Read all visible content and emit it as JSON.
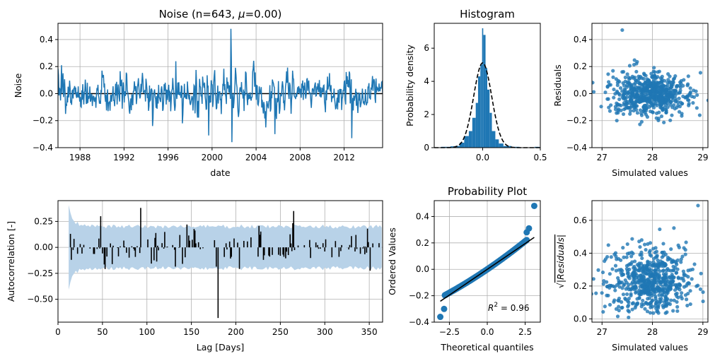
{
  "colors": {
    "primary": "#1f77b4",
    "band": "#b8d2e8",
    "black": "#000000"
  },
  "chart_data": [
    {
      "id": "noise",
      "type": "line",
      "title": "Noise (n=643, $\\mu$=0.00)",
      "title_parts": {
        "prefix": "Noise (n=643, ",
        "symbol": "μ",
        "suffix": "=0.00)"
      },
      "xlabel": "date",
      "ylabel": "Noise",
      "x_range": [
        "1986-01-01",
        "2015-06-30"
      ],
      "ylim": [
        -0.4,
        0.52
      ],
      "xticks": [
        "1988",
        "1992",
        "1996",
        "2000",
        "2004",
        "2008",
        "2012"
      ],
      "yticks": [
        "−0.4",
        "−0.2",
        "0.0",
        "0.2",
        "0.4"
      ],
      "n": 643,
      "mean": 0.0,
      "std": 0.078,
      "spikes": [
        {
          "date": "1986.3",
          "value": 0.21
        },
        {
          "date": "1986.7",
          "value": -0.15
        },
        {
          "date": "1990.0",
          "value": 0.17
        },
        {
          "date": "1994.0",
          "value": 0.11
        },
        {
          "date": "1994.6",
          "value": -0.24
        },
        {
          "date": "1996.7",
          "value": 0.24
        },
        {
          "date": "1997.3",
          "value": -0.22
        },
        {
          "date": "1999.7",
          "value": -0.31
        },
        {
          "date": "2001.7",
          "value": 0.48
        },
        {
          "date": "2001.8",
          "value": -0.36
        },
        {
          "date": "2005.7",
          "value": -0.3
        },
        {
          "date": "2007.3",
          "value": 0.17
        },
        {
          "date": "2012.7",
          "value": -0.33
        },
        {
          "date": "2012.2",
          "value": 0.16
        },
        {
          "date": "2014.6",
          "value": 0.13
        }
      ],
      "grid": true
    },
    {
      "id": "histogram",
      "type": "bar",
      "title": "Histogram",
      "ylabel": "Probability density",
      "xlim": [
        -0.42,
        0.5
      ],
      "ylim": [
        0,
        7.5
      ],
      "xticks": [
        "0.0",
        "0.5"
      ],
      "yticks": [
        "0",
        "2",
        "4",
        "6"
      ],
      "bins": [
        {
          "x0": -0.36,
          "x1": -0.28,
          "density": 0.05
        },
        {
          "x0": -0.28,
          "x1": -0.24,
          "density": 0.08
        },
        {
          "x0": -0.24,
          "x1": -0.2,
          "density": 0.1
        },
        {
          "x0": -0.2,
          "x1": -0.16,
          "density": 0.3
        },
        {
          "x0": -0.16,
          "x1": -0.12,
          "density": 0.7
        },
        {
          "x0": -0.12,
          "x1": -0.09,
          "density": 1.0
        },
        {
          "x0": -0.09,
          "x1": -0.06,
          "density": 1.8
        },
        {
          "x0": -0.06,
          "x1": -0.04,
          "density": 2.7
        },
        {
          "x0": -0.04,
          "x1": -0.02,
          "density": 4.3
        },
        {
          "x0": -0.02,
          "x1": -0.005,
          "density": 5.0
        },
        {
          "x0": -0.005,
          "x1": 0.005,
          "density": 7.2
        },
        {
          "x0": 0.005,
          "x1": 0.025,
          "density": 6.8
        },
        {
          "x0": 0.025,
          "x1": 0.04,
          "density": 4.8
        },
        {
          "x0": 0.04,
          "x1": 0.06,
          "density": 3.5
        },
        {
          "x0": 0.06,
          "x1": 0.08,
          "density": 2.1
        },
        {
          "x0": 0.08,
          "x1": 0.11,
          "density": 1.0
        },
        {
          "x0": 0.11,
          "x1": 0.14,
          "density": 0.5
        },
        {
          "x0": 0.14,
          "x1": 0.18,
          "density": 0.25
        },
        {
          "x0": 0.18,
          "x1": 0.25,
          "density": 0.1
        },
        {
          "x0": 0.25,
          "x1": 0.32,
          "density": 0.05
        },
        {
          "x0": 0.45,
          "x1": 0.49,
          "density": 0.05
        }
      ],
      "normal_fit": {
        "mean": 0.0,
        "std": 0.078,
        "style": "dashed"
      }
    },
    {
      "id": "residuals",
      "type": "scatter",
      "ylabel": "Residuals",
      "xlabel": "Simulated values",
      "xlim": [
        26.8,
        29.1
      ],
      "ylim": [
        -0.4,
        0.52
      ],
      "xticks": [
        "27",
        "28",
        "29"
      ],
      "yticks": [
        "−0.4",
        "−0.2",
        "0.0",
        "0.2",
        "0.4"
      ],
      "x_center": 27.95,
      "x_spread": 0.4,
      "y_spread": 0.078,
      "n": 643,
      "grid": true
    },
    {
      "id": "acf",
      "type": "bar",
      "xlabel": "Lag [Days]",
      "ylabel": "Autocorrelation [-]",
      "xlim": [
        0,
        365
      ],
      "ylim": [
        -0.72,
        0.45
      ],
      "xticks": [
        "0",
        "50",
        "100",
        "150",
        "200",
        "250",
        "300",
        "350"
      ],
      "yticks": [
        "−0.50",
        "−0.25",
        "0.00",
        "0.25"
      ],
      "band_start_half_width": 0.4,
      "band_half_width": 0.2,
      "notable_lags": [
        {
          "lag": 14,
          "value": 0.13
        },
        {
          "lag": 15,
          "value": -0.12
        },
        {
          "lag": 48,
          "value": 0.3
        },
        {
          "lag": 93,
          "value": 0.38
        },
        {
          "lag": 145,
          "value": 0.22
        },
        {
          "lag": 180,
          "value": -0.68
        },
        {
          "lag": 265,
          "value": 0.35
        },
        {
          "lag": 348,
          "value": 0.18
        }
      ],
      "grid": true
    },
    {
      "id": "probplot",
      "type": "scatter",
      "title": "Probability Plot",
      "xlabel": "Theoretical quantiles",
      "ylabel": "Ordered Values",
      "xlim": [
        -3.5,
        3.5
      ],
      "ylim": [
        -0.4,
        0.52
      ],
      "xticks": [
        "−2.5",
        "0.0",
        "2.5"
      ],
      "yticks": [
        "−0.4",
        "−0.2",
        "0.0",
        "0.2",
        "0.4"
      ],
      "annotation_html": "R² = 0.96",
      "annotation": {
        "prefix": "R",
        "sup": "2",
        "suffix": " = 0.96"
      },
      "fit_line": {
        "slope": 0.078,
        "intercept": 0.0,
        "x0": -3.1,
        "x1": 3.1
      },
      "tail_points": [
        {
          "x": -3.1,
          "y": -0.36
        },
        {
          "x": -2.85,
          "y": -0.3
        },
        {
          "x": 2.6,
          "y": 0.28
        },
        {
          "x": 2.75,
          "y": 0.31
        },
        {
          "x": 3.1,
          "y": 0.48
        }
      ],
      "grid": true
    },
    {
      "id": "sqrt_residuals",
      "type": "scatter",
      "ylabel": "√|Residuals|",
      "ylabel_parts": {
        "radical": "√",
        "body": "|Residuals|"
      },
      "xlabel": "Simulated values",
      "xlim": [
        26.8,
        29.1
      ],
      "ylim": [
        -0.02,
        0.72
      ],
      "xticks": [
        "27",
        "28",
        "29"
      ],
      "yticks": [
        "0.0",
        "0.2",
        "0.4",
        "0.6"
      ],
      "n": 643,
      "grid": true
    }
  ]
}
